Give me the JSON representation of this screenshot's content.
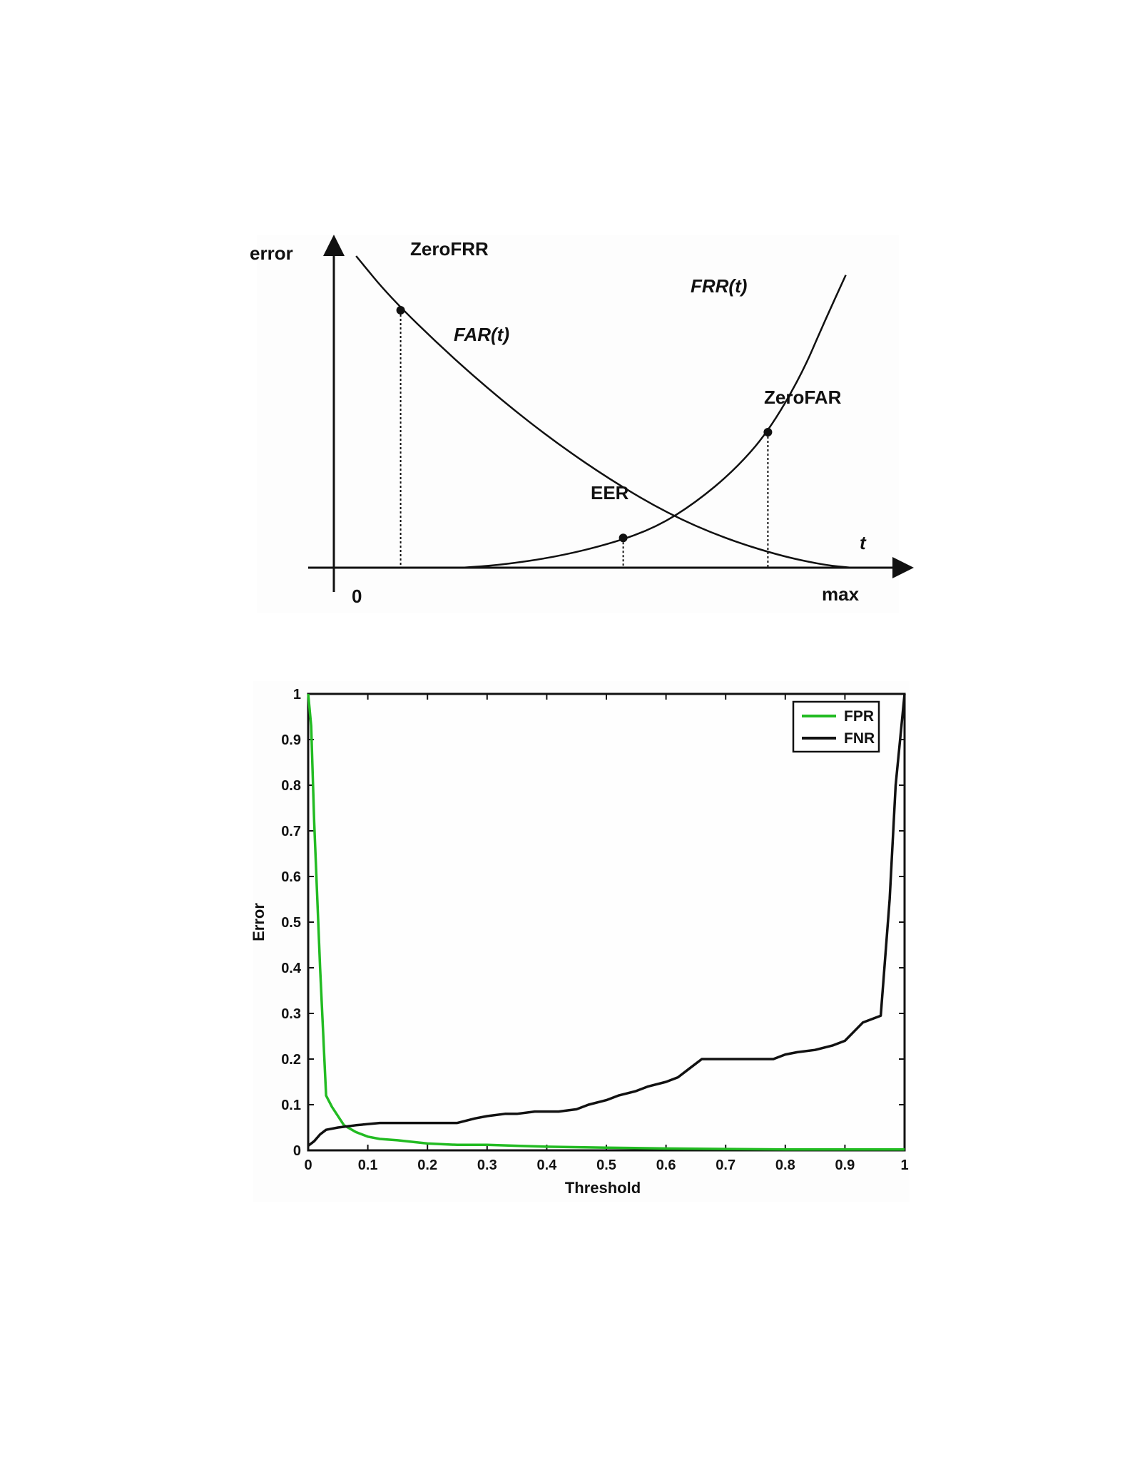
{
  "chart_data": [
    {
      "type": "line",
      "title": "",
      "ylabel": "error",
      "xlabel": "t",
      "x_start_label": "0",
      "x_end_label": "max",
      "series": [
        {
          "name": "FAR(t)",
          "style": "decreasing",
          "points": [
            [
              0.04,
              1.15
            ],
            [
              0.1,
              1.0
            ],
            [
              0.2,
              0.8
            ],
            [
              0.3,
              0.62
            ],
            [
              0.4,
              0.46
            ],
            [
              0.5,
              0.32
            ],
            [
              0.6,
              0.2
            ],
            [
              0.7,
              0.11
            ],
            [
              0.8,
              0.045
            ],
            [
              0.88,
              0.01
            ],
            [
              0.93,
              0.0
            ]
          ]
        },
        {
          "name": "FRR(t)",
          "style": "increasing",
          "points": [
            [
              0.23,
              0.0
            ],
            [
              0.3,
              0.01
            ],
            [
              0.4,
              0.04
            ],
            [
              0.5,
              0.09
            ],
            [
              0.58,
              0.15
            ],
            [
              0.65,
              0.24
            ],
            [
              0.72,
              0.36
            ],
            [
              0.78,
              0.5
            ],
            [
              0.84,
              0.71
            ],
            [
              0.88,
              0.9
            ],
            [
              0.92,
              1.08
            ]
          ]
        }
      ],
      "annotations": [
        {
          "label": "ZeroFRR",
          "x": 0.12,
          "y": 0.95
        },
        {
          "label": "EER",
          "x": 0.52,
          "y": 0.11
        },
        {
          "label": "ZeroFAR",
          "x": 0.78,
          "y": 0.5
        }
      ]
    },
    {
      "type": "line",
      "title": "",
      "xlabel": "Threshold",
      "ylabel": "Error",
      "xlim": [
        0,
        1
      ],
      "ylim": [
        0,
        1
      ],
      "xticks": [
        "0",
        "0.1",
        "0.2",
        "0.3",
        "0.4",
        "0.5",
        "0.6",
        "0.7",
        "0.8",
        "0.9",
        "1"
      ],
      "yticks": [
        "0",
        "0.1",
        "0.2",
        "0.3",
        "0.4",
        "0.5",
        "0.6",
        "0.7",
        "0.8",
        "0.9",
        "1"
      ],
      "legend_position": "top-right",
      "grid": false,
      "series": [
        {
          "name": "FPR",
          "color": "#22bb22",
          "x": [
            0,
            0.005,
            0.01,
            0.02,
            0.03,
            0.04,
            0.06,
            0.08,
            0.1,
            0.12,
            0.15,
            0.2,
            0.25,
            0.3,
            0.35,
            0.4,
            0.5,
            0.6,
            0.7,
            0.8,
            0.9,
            1.0
          ],
          "y": [
            1.0,
            0.93,
            0.72,
            0.4,
            0.12,
            0.095,
            0.055,
            0.04,
            0.03,
            0.025,
            0.022,
            0.015,
            0.012,
            0.012,
            0.01,
            0.008,
            0.006,
            0.004,
            0.003,
            0.002,
            0.002,
            0.002
          ]
        },
        {
          "name": "FNR",
          "color": "#111111",
          "x": [
            0,
            0.01,
            0.02,
            0.03,
            0.05,
            0.08,
            0.12,
            0.15,
            0.2,
            0.25,
            0.28,
            0.3,
            0.33,
            0.35,
            0.38,
            0.4,
            0.42,
            0.45,
            0.47,
            0.5,
            0.52,
            0.55,
            0.57,
            0.6,
            0.62,
            0.64,
            0.66,
            0.7,
            0.74,
            0.78,
            0.8,
            0.82,
            0.85,
            0.88,
            0.9,
            0.93,
            0.96,
            0.975,
            0.985,
            1.0
          ],
          "y": [
            0.01,
            0.02,
            0.035,
            0.045,
            0.05,
            0.055,
            0.06,
            0.06,
            0.06,
            0.06,
            0.07,
            0.075,
            0.08,
            0.08,
            0.085,
            0.085,
            0.085,
            0.09,
            0.1,
            0.11,
            0.12,
            0.13,
            0.14,
            0.15,
            0.16,
            0.18,
            0.2,
            0.2,
            0.2,
            0.2,
            0.21,
            0.215,
            0.22,
            0.23,
            0.24,
            0.28,
            0.295,
            0.55,
            0.8,
            1.0
          ]
        }
      ]
    }
  ]
}
